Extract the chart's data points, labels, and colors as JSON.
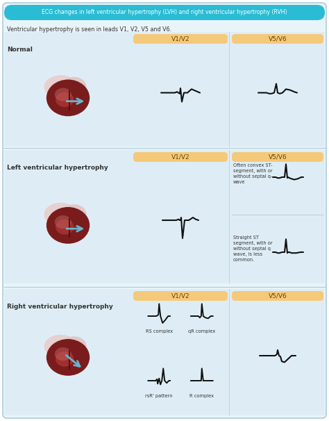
{
  "title": "ECG changes in left ventricular hypertrophy (LVH) and right ventricular hypertrophy (RVH)",
  "subtitle": "Ventricular hypertrophy is seen in leads V1, V2, V5 and V6.",
  "title_bg": "#29bcd4",
  "title_color": "#ffffff",
  "bg_color": "#e8f4f8",
  "row_bg": "#deedf5",
  "header_bg": "#f5c97a",
  "row_labels": [
    "Normal",
    "Left ventricular hypertrophy",
    "Right ventricular hypertrophy"
  ],
  "annotations": {
    "lvh_v56_1": "Often convex ST-\nsegment, with or\nwithout septal q-\nwave",
    "lvh_v56_2": "Straight ST\nsegment, with or\nwithout septal q\nwave, is less\ncommon.",
    "rvh_v12_1": "RS complex",
    "rvh_v12_2": "qR complex",
    "rvh_v12_3": "rsR' pattern",
    "rvh_v12_4": "R complex"
  },
  "text_color": "#333333",
  "line_color": "#111111",
  "divider_color": "#b0ccd8"
}
